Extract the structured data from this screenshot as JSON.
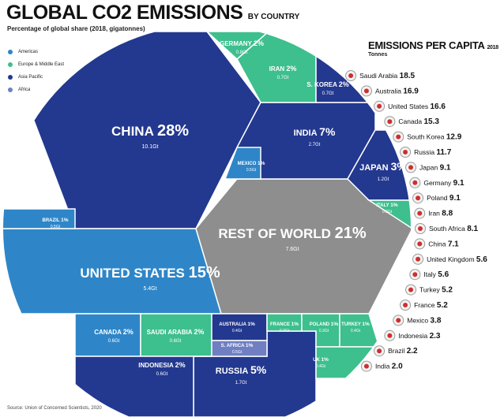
{
  "header": {
    "title": "GLOBAL CO2 EMISSIONS",
    "title_suffix": "BY COUNTRY",
    "subtitle": "Percentage of global share (2018, gigatonnes)"
  },
  "legend": [
    {
      "label": "Americas",
      "color": "#2e86c8"
    },
    {
      "label": "Europe & Middle East",
      "color": "#3dbf8e"
    },
    {
      "label": "Asia Pacific",
      "color": "#23388f"
    },
    {
      "label": "Africa",
      "color": "#6f7fc2"
    }
  ],
  "colors": {
    "americas": "#2e86c8",
    "europe": "#3dbf8e",
    "asia": "#23388f",
    "africa": "#6f7fc2",
    "rest": "#8e8e8e"
  },
  "source": "Source: Union of Concerned Scientists, 2020",
  "chart_data": [
    {
      "type": "treemap",
      "title": "GLOBAL CO2 EMISSIONS",
      "subtitle": "Percentage of global share (2018, gigatonnes)",
      "cells": [
        {
          "name": "CHINA",
          "percent": "28%",
          "value": "10.1Gt",
          "region": "asia"
        },
        {
          "name": "UNITED STATES",
          "percent": "15%",
          "value": "5.4Gt",
          "region": "americas"
        },
        {
          "name": "REST OF WORLD",
          "percent": "21%",
          "value": "7.6Gt",
          "region": "rest"
        },
        {
          "name": "INDIA",
          "percent": "7%",
          "value": "2.7Gt",
          "region": "asia"
        },
        {
          "name": "RUSSIA",
          "percent": "5%",
          "value": "1.7Gt",
          "region": "asia"
        },
        {
          "name": "JAPAN",
          "percent": "3%",
          "value": "1.2Gt",
          "region": "asia"
        },
        {
          "name": "GERMANY",
          "percent": "2%",
          "value": "0.8Gt",
          "region": "europe"
        },
        {
          "name": "IRAN",
          "percent": "2%",
          "value": "0.7Gt",
          "region": "europe"
        },
        {
          "name": "S. KOREA",
          "percent": "2%",
          "value": "0.7Gt",
          "region": "asia"
        },
        {
          "name": "CANADA",
          "percent": "2%",
          "value": "0.6Gt",
          "region": "americas"
        },
        {
          "name": "SAUDI ARABIA",
          "percent": "2%",
          "value": "0.6Gt",
          "region": "europe"
        },
        {
          "name": "INDONESIA",
          "percent": "2%",
          "value": "0.6Gt",
          "region": "asia"
        },
        {
          "name": "MEXICO",
          "percent": "1%",
          "value": "0.5Gt",
          "region": "americas"
        },
        {
          "name": "BRAZIL",
          "percent": "1%",
          "value": "0.5Gt",
          "region": "americas"
        },
        {
          "name": "ITALY",
          "percent": "1%",
          "value": "0.3Gt",
          "region": "europe"
        },
        {
          "name": "AUSTRALIA",
          "percent": "1%",
          "value": "0.4Gt",
          "region": "asia"
        },
        {
          "name": "S. AFRICA",
          "percent": "1%",
          "value": "0.5Gt",
          "region": "africa"
        },
        {
          "name": "FRANCE",
          "percent": "1%",
          "value": "0.3Gt",
          "region": "europe"
        },
        {
          "name": "POLAND",
          "percent": "1%",
          "value": "0.3Gt",
          "region": "europe"
        },
        {
          "name": "TURKEY",
          "percent": "1%",
          "value": "0.4Gt",
          "region": "europe"
        },
        {
          "name": "UK",
          "percent": "1%",
          "value": "0.4Gt",
          "region": "europe"
        }
      ]
    },
    {
      "type": "table",
      "title": "EMISSIONS PER CAPITA",
      "title_suffix": "2018",
      "unit": "Tonnes",
      "rows": [
        {
          "country": "Saudi Arabia",
          "value": 18.5
        },
        {
          "country": "Australia",
          "value": 16.9
        },
        {
          "country": "United States",
          "value": 16.6
        },
        {
          "country": "Canada",
          "value": 15.3
        },
        {
          "country": "South Korea",
          "value": 12.9
        },
        {
          "country": "Russia",
          "value": 11.7
        },
        {
          "country": "Japan",
          "value": 9.1
        },
        {
          "country": "Germany",
          "value": 9.1
        },
        {
          "country": "Poland",
          "value": 9.1
        },
        {
          "country": "Iran",
          "value": 8.8
        },
        {
          "country": "South Africa",
          "value": 8.1
        },
        {
          "country": "China",
          "value": 7.1
        },
        {
          "country": "United Kingdom",
          "value": 5.6
        },
        {
          "country": "Italy",
          "value": 5.6
        },
        {
          "country": "Turkey",
          "value": 5.2
        },
        {
          "country": "France",
          "value": 5.2
        },
        {
          "country": "Mexico",
          "value": 3.8
        },
        {
          "country": "Indonesia",
          "value": 2.3
        },
        {
          "country": "Brazil",
          "value": 2.2
        },
        {
          "country": "India",
          "value": 2.0
        }
      ]
    }
  ]
}
